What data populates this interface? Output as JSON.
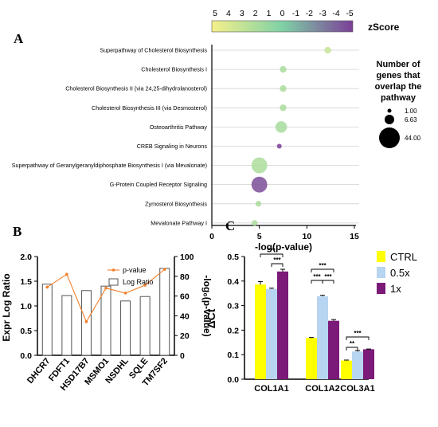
{
  "panel_labels": {
    "a": "A",
    "b": "B",
    "c": "C"
  },
  "chart_data": [
    {
      "type": "scatter",
      "subtype": "bubble",
      "panel": "A",
      "xlabel": "-log(p-value)",
      "xlim": [
        0,
        15
      ],
      "x_ticks": [
        "0",
        "5",
        "10",
        "15"
      ],
      "colorbar": {
        "title": "zScore",
        "ticks": [
          "5",
          "4",
          "3",
          "2",
          "1",
          "0",
          "-1",
          "-2",
          "-3",
          "-4",
          "-5"
        ],
        "low_color": "#f6f08a",
        "mid_color": "#7fd1a6",
        "high_color": "#7b3f98"
      },
      "size_legend": {
        "title_lines": [
          "Number of",
          "genes that",
          "overlap the",
          "pathway"
        ],
        "values": [
          "1.00",
          "6.63",
          "44.00"
        ]
      },
      "grid": "horizontal",
      "pathways": [
        {
          "name": "Superpathway of Cholesterol Biosynthesis",
          "x": 12.2,
          "genes": 3,
          "zscore": 3.0
        },
        {
          "name": "Cholesterol Biosynthesis I",
          "x": 7.5,
          "genes": 3,
          "zscore": 1.8
        },
        {
          "name": "Cholesterol Biosynthesis II (via 24,25-dihydrolanosterol)",
          "x": 7.5,
          "genes": 3,
          "zscore": 1.8
        },
        {
          "name": "Cholesterol Biosynthesis III (via Desmosterol)",
          "x": 7.5,
          "genes": 3,
          "zscore": 1.8
        },
        {
          "name": "Osteoarthritis Pathway",
          "x": 7.3,
          "genes": 14,
          "zscore": 1.7
        },
        {
          "name": "CREB Signaling in Neurons",
          "x": 7.1,
          "genes": 1,
          "zscore": -5
        },
        {
          "name": "Superpathway of Geranylgeranyldiphosphate Biosynthesis I (via Mevalonate)",
          "x": 5.0,
          "genes": 30,
          "zscore": 1.9
        },
        {
          "name": "G-Protein Coupled Receptor Signaling",
          "x": 5.0,
          "genes": 30,
          "zscore": -4.5
        },
        {
          "name": "Zymosterol Biosynthesis",
          "x": 4.9,
          "genes": 2,
          "zscore": 1.8
        },
        {
          "name": "Mevalonate Pathway I",
          "x": 4.5,
          "genes": 2,
          "zscore": 1.8
        }
      ]
    },
    {
      "type": "bar",
      "panel": "B",
      "categories": [
        "DHCR7",
        "FDFT1",
        "HSD17B7",
        "MSMO1",
        "NSDHL",
        "SQLE",
        "TM7SF2"
      ],
      "ylabel": "Expr Log Ratio",
      "y2label": "-log₀(p-value)",
      "ylim": [
        0,
        2.0
      ],
      "y_ticks": [
        "0.0",
        "0.5",
        "1.0",
        "1.5",
        "2.0"
      ],
      "y2lim": [
        0,
        100
      ],
      "y2_ticks": [
        "0",
        "20",
        "40",
        "60",
        "80",
        "100"
      ],
      "legend": "top-center",
      "series": [
        {
          "name": "Log Ratio",
          "kind": "bar",
          "values": [
            1.44,
            1.21,
            1.31,
            1.4,
            1.1,
            1.19,
            1.76
          ]
        },
        {
          "name": "p-value",
          "kind": "line",
          "color": "#f07f2a",
          "values": [
            69,
            82,
            34,
            68,
            63,
            71,
            87
          ]
        }
      ]
    },
    {
      "type": "bar",
      "panel": "C",
      "categories": [
        "COL1A1",
        "COL1A2",
        "COL3A1"
      ],
      "ylabel": "ΔCt",
      "ylim": [
        0,
        0.5
      ],
      "y_ticks": [
        "0.0",
        "0.1",
        "0.2",
        "0.3",
        "0.4",
        "0.5"
      ],
      "legend": "right",
      "series": [
        {
          "name": "CTRL",
          "color": "#ffff00",
          "values": [
            0.386,
            0.168,
            0.076
          ],
          "errors": [
            0.012,
            0.002,
            0.002
          ]
        },
        {
          "name": "0.5x",
          "color": "#b7d4f0",
          "values": [
            0.368,
            0.338,
            0.113
          ],
          "errors": [
            0.003,
            0.004,
            0.004
          ]
        },
        {
          "name": "1x",
          "color": "#7b1a78",
          "values": [
            0.439,
            0.238,
            0.122
          ],
          "errors": [
            0.009,
            0.005,
            0.001
          ]
        }
      ],
      "significance": [
        {
          "category": 0,
          "from": 0,
          "to": 2,
          "label": "***"
        },
        {
          "category": 0,
          "from": 1,
          "to": 2,
          "label": "***"
        },
        {
          "category": 1,
          "from": 0,
          "to": 1,
          "label": "***"
        },
        {
          "category": 1,
          "from": 1,
          "to": 2,
          "label": "***"
        },
        {
          "category": 1,
          "from": 0,
          "to": 2,
          "label": "***"
        },
        {
          "category": 2,
          "from": 0,
          "to": 1,
          "label": "**"
        },
        {
          "category": 2,
          "from": 0,
          "to": 2,
          "label": "***"
        }
      ]
    }
  ]
}
